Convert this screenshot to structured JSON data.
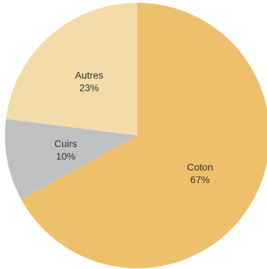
{
  "chart_data": {
    "type": "pie",
    "slices": [
      {
        "label": "Coton",
        "value": 67,
        "value_label": "67%",
        "color": "#eec06c"
      },
      {
        "label": "Cuirs",
        "value": 10,
        "value_label": "10%",
        "color": "#bfc0c2"
      },
      {
        "label": "Autres",
        "value": 23,
        "value_label": "23%",
        "color": "#f4dbaa"
      }
    ],
    "start_angle_deg": 0,
    "direction": "clockwise",
    "legend": "none"
  }
}
